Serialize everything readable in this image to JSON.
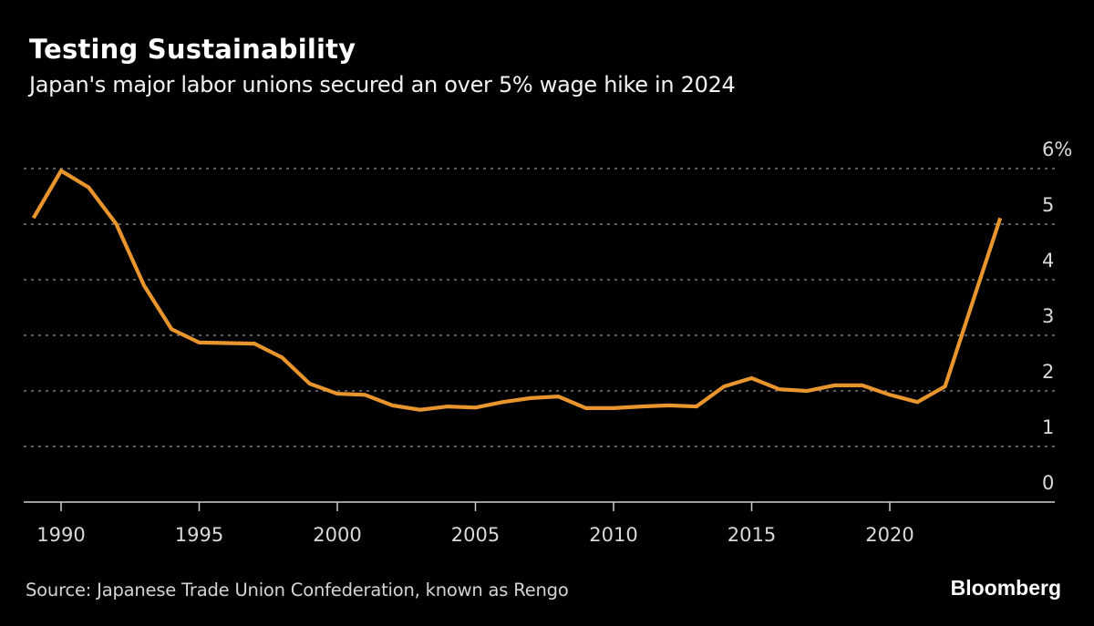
{
  "header": {
    "title": "Testing Sustainability",
    "subtitle": "Japan's major labor unions secured an over 5% wage hike in 2024"
  },
  "footer": {
    "source": "Source: Japanese Trade Union Confederation, known as Rengo",
    "brand": "Bloomberg"
  },
  "colors": {
    "background": "#000000",
    "line": "#E8952E",
    "grid": "#7a7a7a",
    "axis": "#cfcfcf"
  },
  "chart_data": {
    "type": "line",
    "title": "Testing Sustainability",
    "subtitle": "Japan's major labor unions secured an over 5% wage hike in 2024",
    "xlabel": "",
    "ylabel": "",
    "x": [
      1989,
      1990,
      1991,
      1992,
      1993,
      1994,
      1995,
      1996,
      1997,
      1998,
      1999,
      2000,
      2001,
      2002,
      2003,
      2004,
      2005,
      2006,
      2007,
      2008,
      2009,
      2010,
      2011,
      2012,
      2013,
      2014,
      2015,
      2016,
      2017,
      2018,
      2019,
      2020,
      2021,
      2022,
      2023,
      2024
    ],
    "series": [
      {
        "name": "Wage hike (%)",
        "values": [
          5.11,
          5.96,
          5.66,
          5.0,
          3.9,
          3.11,
          2.87,
          2.86,
          2.85,
          2.6,
          2.13,
          1.95,
          1.93,
          1.74,
          1.66,
          1.72,
          1.7,
          1.8,
          1.87,
          1.9,
          1.69,
          1.69,
          1.72,
          1.74,
          1.72,
          2.08,
          2.23,
          2.03,
          2.0,
          2.1,
          2.1,
          1.93,
          1.8,
          2.08,
          3.6,
          5.11
        ]
      }
    ],
    "xlim": [
      1987.7,
      2026.4
    ],
    "ylim": [
      0,
      6
    ],
    "x_ticks": [
      1990,
      1995,
      2000,
      2005,
      2010,
      2015,
      2020
    ],
    "x_tick_labels": [
      "1990",
      "1995",
      "2000",
      "2005",
      "2010",
      "2015",
      "2020"
    ],
    "y_ticks": [
      0,
      1,
      2,
      3,
      4,
      5,
      6
    ],
    "y_tick_labels": [
      "0",
      "1",
      "2",
      "3",
      "4",
      "5",
      "6%"
    ],
    "y_axis_side": "right",
    "grid": true,
    "grid_style": "dotted horizontal",
    "legend": "none"
  }
}
